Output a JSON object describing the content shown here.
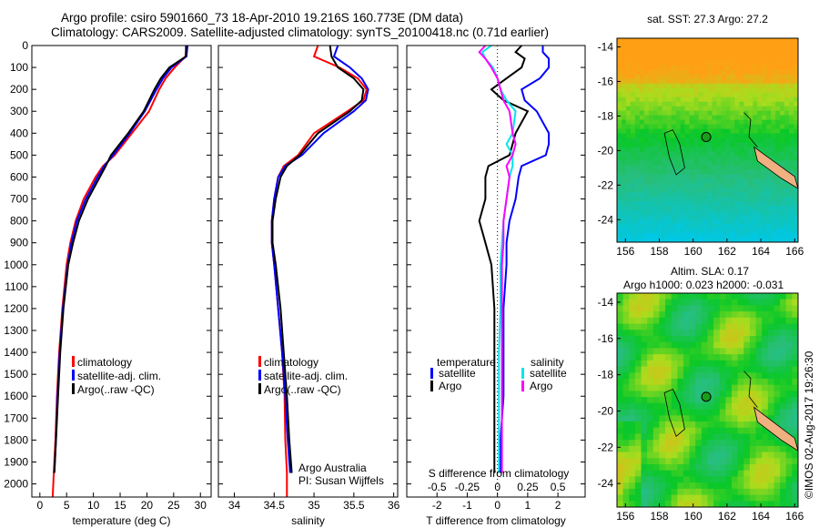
{
  "title_line1": "Argo profile: csiro 5901660_73 18-Apr-2010 19.216S 160.773E (DM data)",
  "title_line2": "Climatology: CARS2009. Satellite-adjusted climatology: synTS_20100418.nc (0.71d earlier)",
  "credit": "©IMOS 02-Aug-2017 19:26:30",
  "colors": {
    "climatology": "#ff0000",
    "satellite": "#0000ff",
    "argo": "#000000",
    "sal_satellite": "#00e5ee",
    "sal_argo": "#ff00ff"
  },
  "chart_data": [
    {
      "type": "line",
      "xlabel": "temperature (deg C)",
      "ylabel": "depth",
      "xlim": [
        -1.5,
        32
      ],
      "ylim": [
        2060,
        0
      ],
      "xticks": [
        "0",
        "5",
        "10",
        "15",
        "20",
        "25",
        "30"
      ],
      "xtick_values": [
        0,
        5,
        10,
        15,
        20,
        25,
        30
      ],
      "yticks": [
        "0",
        "100",
        "200",
        "300",
        "400",
        "500",
        "600",
        "700",
        "800",
        "900",
        "1000",
        "1100",
        "1200",
        "1300",
        "1400",
        "1500",
        "1600",
        "1700",
        "1800",
        "1900",
        "2000"
      ],
      "depth": [
        0,
        50,
        100,
        150,
        200,
        300,
        400,
        500,
        550,
        600,
        700,
        800,
        900,
        1000,
        1200,
        1400,
        1600,
        1800,
        1950,
        2060
      ],
      "series": [
        {
          "name": "climatology",
          "color": "#ff0000",
          "values": [
            27.4,
            27.2,
            25.2,
            23.5,
            22.3,
            20.4,
            17.2,
            14.0,
            11.8,
            10.4,
            8.2,
            6.7,
            5.7,
            5.0,
            4.2,
            3.6,
            3.2,
            2.9,
            2.6,
            2.4
          ]
        },
        {
          "name": "satellite-adj. clim.",
          "color": "#0000ff",
          "values": [
            27.6,
            27.4,
            24.6,
            23.0,
            21.8,
            19.6,
            16.8,
            13.7,
            12.0,
            10.8,
            8.6,
            6.9,
            5.9,
            5.2,
            4.3,
            3.7,
            3.3,
            3.0,
            2.7,
            null
          ]
        },
        {
          "name": "Argo(..raw -QC)",
          "color": "#000000",
          "values": [
            27.3,
            27.3,
            24.2,
            22.6,
            21.4,
            19.4,
            16.5,
            13.3,
            12.3,
            11.2,
            9.0,
            7.3,
            6.2,
            5.3,
            4.4,
            3.8,
            3.4,
            3.0,
            2.7,
            null
          ]
        }
      ],
      "legend": "bottom-center"
    },
    {
      "type": "line",
      "xlabel": "salinity",
      "xlim": [
        33.8,
        36.05
      ],
      "ylim": [
        2060,
        0
      ],
      "xticks": [
        "34",
        "34.5",
        "35",
        "35.5",
        "36"
      ],
      "xtick_values": [
        34,
        34.5,
        35,
        35.5,
        36
      ],
      "depth": [
        0,
        50,
        100,
        150,
        200,
        250,
        300,
        400,
        500,
        550,
        600,
        700,
        800,
        900,
        1000,
        1200,
        1400,
        1600,
        1800,
        1950,
        2060
      ],
      "series": [
        {
          "name": "climatology",
          "color": "#ff0000",
          "values": [
            35.05,
            35.0,
            35.32,
            35.55,
            35.66,
            35.62,
            35.42,
            35.0,
            34.8,
            34.62,
            34.55,
            34.5,
            34.47,
            34.47,
            34.5,
            34.55,
            34.6,
            34.63,
            34.64,
            34.66,
            34.66
          ]
        },
        {
          "name": "satellite-adj. clim.",
          "color": "#0000ff",
          "values": [
            35.3,
            35.25,
            35.45,
            35.6,
            35.68,
            35.65,
            35.5,
            35.12,
            34.85,
            34.64,
            34.55,
            34.5,
            34.47,
            34.47,
            34.5,
            34.55,
            34.6,
            34.64,
            34.67,
            34.7,
            null
          ]
        },
        {
          "name": "Argo(..raw -QC)",
          "color": "#000000",
          "values": [
            35.2,
            35.22,
            35.3,
            35.5,
            35.62,
            35.6,
            35.45,
            35.05,
            34.82,
            34.66,
            34.58,
            34.52,
            34.48,
            34.48,
            34.52,
            34.58,
            34.62,
            34.66,
            34.69,
            34.72,
            null
          ]
        }
      ],
      "annotation": [
        "Argo Australia",
        "PI: Susan Wijffels"
      ],
      "legend": "bottom-center"
    },
    {
      "type": "line",
      "xlabel": "T difference from climatology",
      "xlabel_top": "S difference from climatology",
      "xlim": [
        -3,
        2.9
      ],
      "ylim": [
        2060,
        0
      ],
      "xticks": [
        "-2",
        "-1",
        "0",
        "1",
        "2"
      ],
      "xtick_values": [
        -2,
        -1,
        0,
        1,
        2
      ],
      "sticks": [
        "-0.5",
        "-0.25",
        "0",
        "0.25",
        "0.5"
      ],
      "stick_values": [
        -0.5,
        -0.25,
        0,
        0.25,
        0.5
      ],
      "depth": [
        0,
        30,
        60,
        100,
        150,
        200,
        250,
        300,
        400,
        450,
        500,
        550,
        600,
        700,
        800,
        900,
        1000,
        1200,
        1400,
        1600,
        1800,
        1950
      ],
      "series": [
        {
          "name": "temperature satellite",
          "color": "#0000ff",
          "values": [
            1.5,
            1.5,
            1.7,
            1.7,
            1.4,
            0.8,
            0.9,
            1.3,
            1.7,
            1.7,
            1.6,
            0.8,
            0.7,
            0.6,
            0.4,
            0.3,
            0.3,
            0.2,
            0.2,
            0.2,
            0.1,
            0.1
          ]
        },
        {
          "name": "temperature Argo",
          "color": "#000000",
          "values": [
            0.8,
            0.6,
            0.9,
            0.8,
            0.3,
            -0.2,
            0.2,
            1.0,
            0.6,
            0.5,
            0.4,
            -0.3,
            -0.4,
            -0.4,
            -0.6,
            -0.4,
            -0.2,
            -0.1,
            -0.1,
            -0.1,
            -0.1,
            -0.1
          ]
        },
        {
          "name": "salinity satellite",
          "color": "#00e5ee",
          "values": [
            -0.2,
            -0.5,
            -0.4,
            -0.15,
            0.0,
            0.1,
            0.3,
            0.6,
            0.5,
            0.3,
            0.5,
            0.5,
            0.4,
            0.3,
            0.2,
            0.15,
            0.1,
            0.1,
            0.05,
            0.05,
            0.05,
            0.05
          ]
        },
        {
          "name": "salinity Argo",
          "color": "#ff00ff",
          "values": [
            -0.4,
            -0.6,
            -0.4,
            -0.2,
            0.0,
            0.1,
            0.2,
            0.4,
            0.5,
            0.6,
            0.5,
            0.3,
            0.4,
            0.3,
            0.2,
            0.2,
            0.15,
            0.15,
            0.15,
            0.15,
            0.15,
            0.15
          ]
        }
      ],
      "legend_headers": [
        "temperature",
        "salinity"
      ],
      "legend_items": [
        "satellite",
        "Argo",
        "satellite",
        "Argo"
      ]
    }
  ],
  "maps": [
    {
      "title": "sat. SST: 27.3 Argo: 27.2",
      "xticks": [
        "156",
        "158",
        "160",
        "162",
        "164",
        "166"
      ],
      "yticks": [
        "-14",
        "-16",
        "-18",
        "-20",
        "-22",
        "-24"
      ],
      "lonlim": [
        155.5,
        166.2
      ],
      "latlim": [
        -25.3,
        -13.5
      ]
    },
    {
      "title": "Altim. SLA: 0.17",
      "subtitle": "Argo h1000: 0.023 h2000: -0.031",
      "xticks": [
        "156",
        "158",
        "160",
        "162",
        "164",
        "166"
      ],
      "yticks": [
        "-14",
        "-16",
        "-18",
        "-20",
        "-22",
        "-24"
      ],
      "lonlim": [
        155.5,
        166.2
      ],
      "latlim": [
        -25.3,
        -13.5
      ]
    }
  ],
  "argo_position": {
    "lat": -19.216,
    "lon": 160.773
  }
}
